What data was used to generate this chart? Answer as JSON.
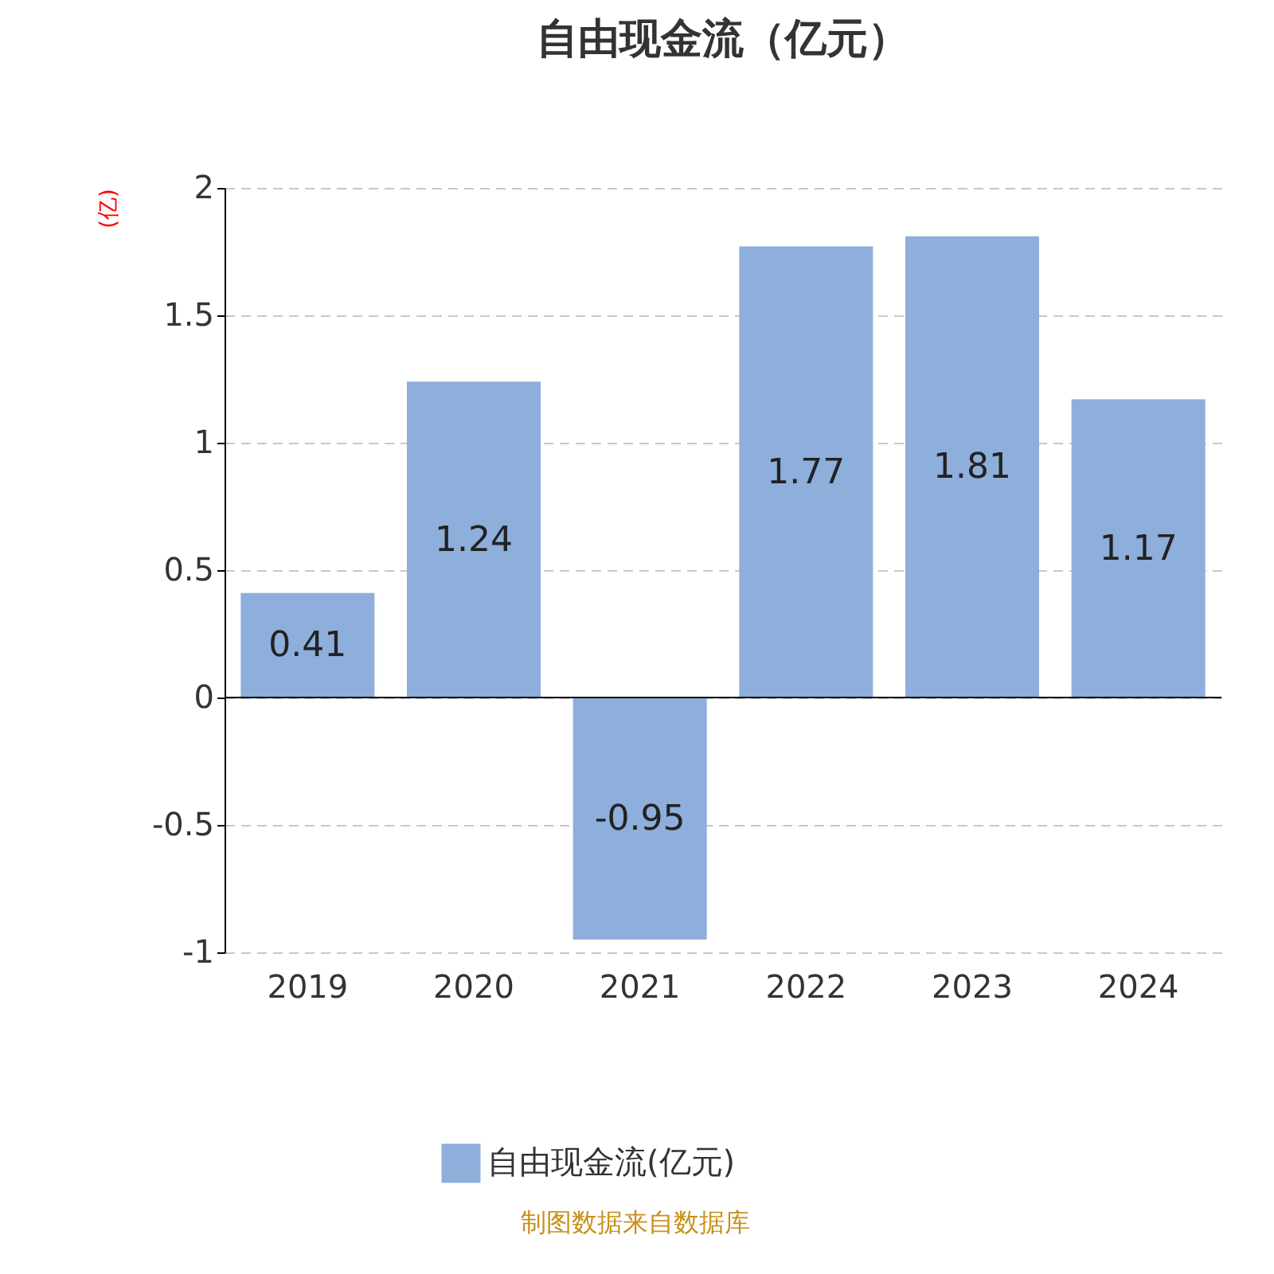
{
  "chart_data": {
    "type": "bar",
    "title": "自由现金流（亿元）",
    "ylabel": "(亿)",
    "categories": [
      "2019",
      "2020",
      "2021",
      "2022",
      "2023",
      "2024"
    ],
    "series": [
      {
        "name": "自由现金流(亿元)",
        "color": "#8eaedb",
        "values": [
          0.41,
          1.24,
          -0.95,
          1.77,
          1.81,
          1.17
        ]
      }
    ],
    "ylim": [
      -1,
      2
    ],
    "yticks": [
      -1,
      -0.5,
      0,
      0.5,
      1,
      1.5,
      2
    ],
    "grid": "y",
    "legend": "bottom",
    "data_labels": true,
    "annotations": [
      "制图数据来自数据库"
    ]
  }
}
